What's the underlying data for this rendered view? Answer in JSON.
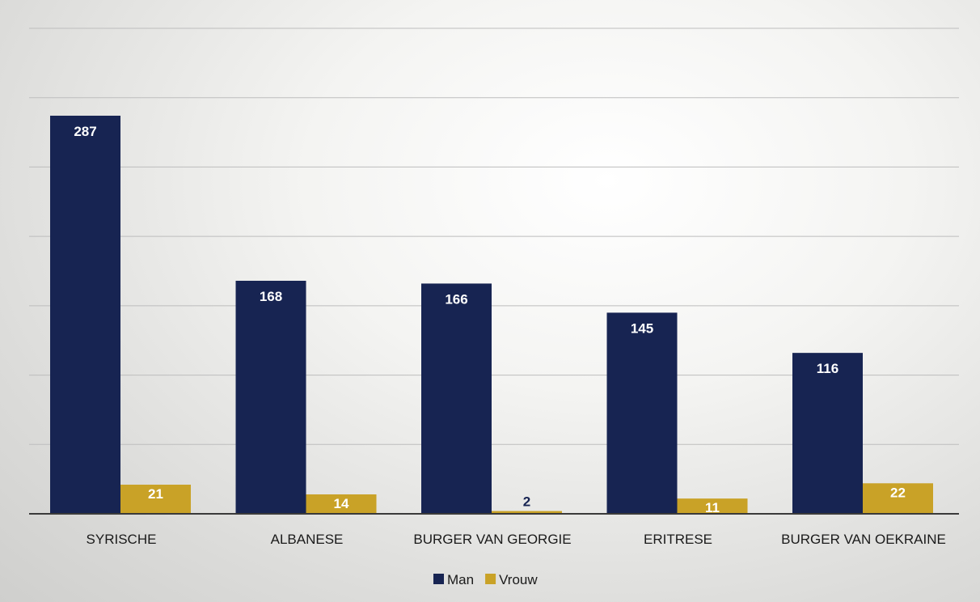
{
  "chart_data": {
    "type": "bar",
    "categories": [
      "SYRISCHE",
      "ALBANESE",
      "BURGER VAN GEORGIE",
      "ERITRESE",
      "BURGER VAN OEKRAINE"
    ],
    "series": [
      {
        "name": "Man",
        "values": [
          287,
          168,
          166,
          145,
          116
        ],
        "color": "#172452"
      },
      {
        "name": "Vrouw",
        "values": [
          21,
          14,
          2,
          11,
          22
        ],
        "color": "#c9a227"
      }
    ],
    "ylim": [
      0,
      350
    ],
    "grid": true,
    "legend_position": "bottom"
  },
  "colors": {
    "gridline": "#bdbdbd",
    "baseline": "#3a3a3a",
    "label_on_dark": "#ffffff",
    "label_dark": "#172452"
  }
}
